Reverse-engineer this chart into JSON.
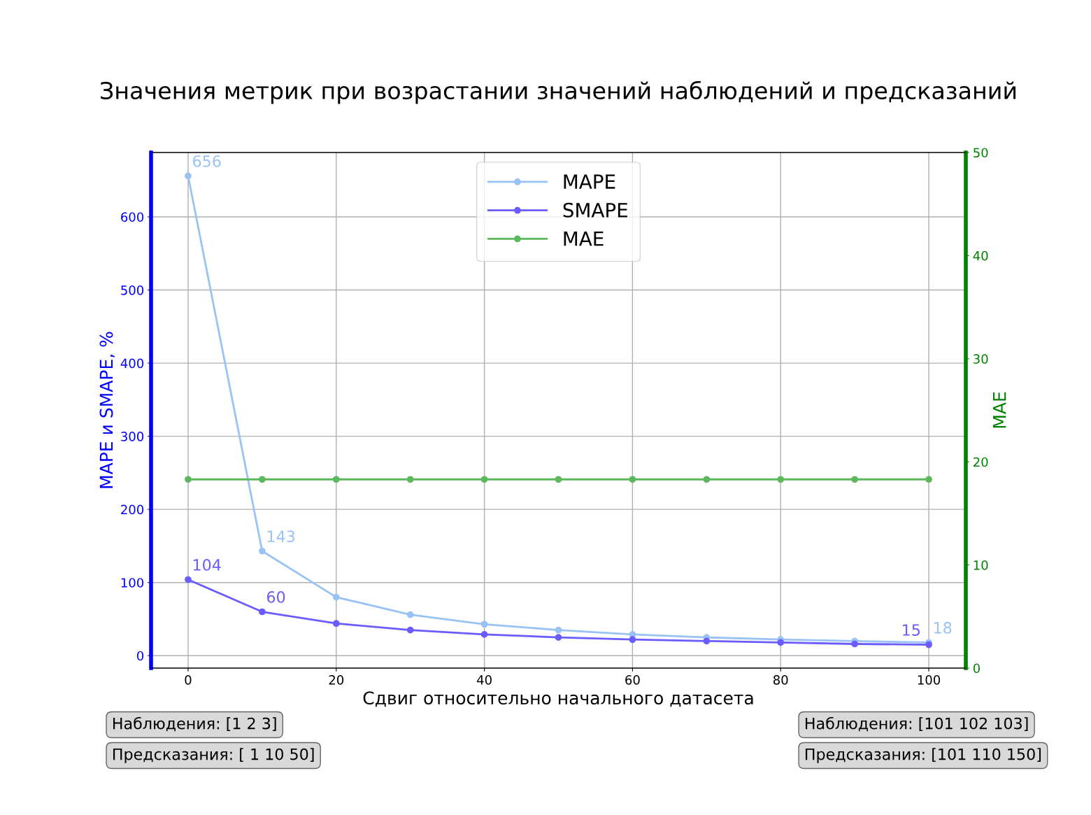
{
  "chart_data": {
    "type": "line",
    "title": "Значения метрик при возрастании значений наблюдений и предсказаний",
    "xlabel": "Сдвиг относительно начального датасета",
    "ylabel": "MAPE и SMAPE, %",
    "y2label": "MAE",
    "x": [
      0,
      10,
      20,
      30,
      40,
      50,
      60,
      70,
      80,
      90,
      100
    ],
    "series": [
      {
        "name": "MAPE",
        "color": "#99c2f5",
        "values": [
          656,
          143,
          80,
          56,
          43,
          35,
          29,
          25,
          22,
          20,
          18
        ],
        "value_labels": [
          "656",
          "143",
          null,
          null,
          null,
          null,
          null,
          null,
          null,
          null,
          "18"
        ]
      },
      {
        "name": "SMAPE",
        "color": "#6b5cff",
        "values": [
          104,
          60,
          44,
          35,
          29,
          25,
          22,
          20,
          18,
          16,
          15
        ],
        "value_labels": [
          "104",
          "60",
          null,
          null,
          null,
          null,
          null,
          null,
          null,
          null,
          "15"
        ]
      },
      {
        "name": "MAE",
        "color": "#5cb85c",
        "axis": "y2",
        "values": [
          18.3,
          18.3,
          18.3,
          18.3,
          18.3,
          18.3,
          18.3,
          18.3,
          18.3,
          18.3,
          18.3
        ]
      }
    ],
    "xlim": [
      -5,
      105
    ],
    "xticks": [
      0,
      20,
      40,
      60,
      80,
      100
    ],
    "ylim": [
      -17,
      688
    ],
    "yticks": [
      0,
      100,
      200,
      300,
      400,
      500,
      600
    ],
    "y2lim": [
      0,
      50
    ],
    "y2ticks": [
      0,
      10,
      20,
      30,
      40,
      50
    ],
    "grid": true,
    "legend": "top",
    "marker": "circle",
    "line_style": "solid",
    "annotations": [
      "Наблюдения: [1 2 3]",
      "Предсказания: [ 1 10 50]",
      "Наблюдения: [101 102 103]",
      "Предсказания: [101 110 150]"
    ]
  }
}
